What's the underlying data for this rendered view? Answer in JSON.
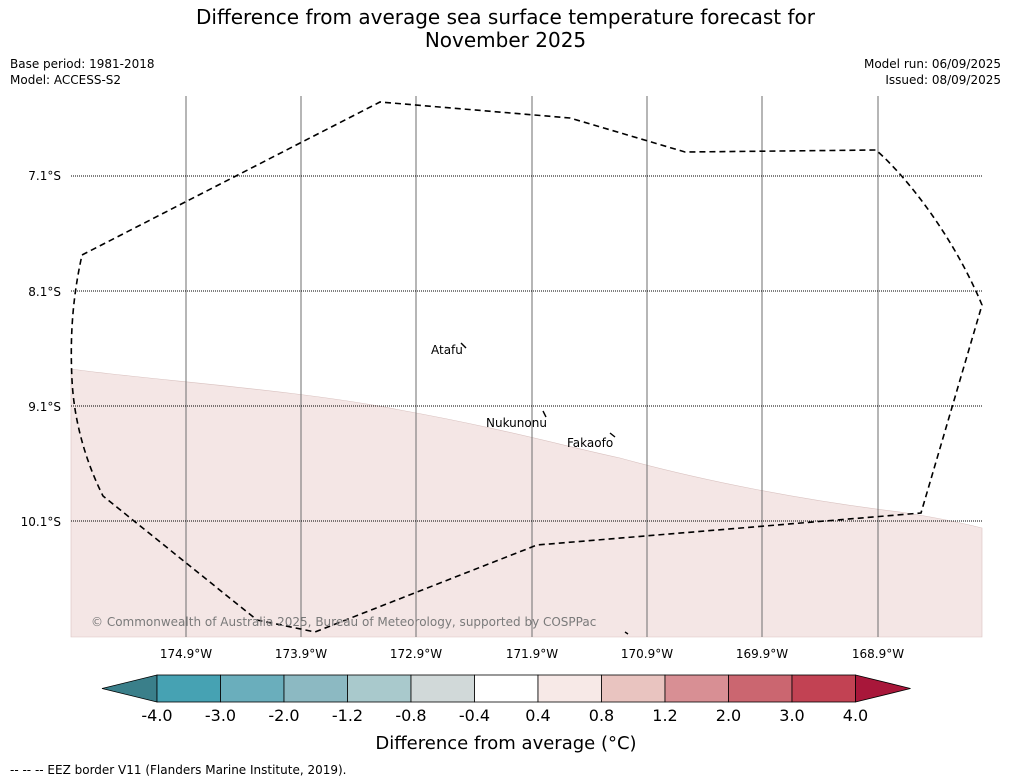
{
  "title_line1": "Difference from average sea surface temperature forecast for",
  "title_line2": "November 2025",
  "meta": {
    "base_period": "Base period: 1981-2018",
    "model": "Model: ACCESS-S2",
    "model_run": "Model run: 06/09/2025",
    "issued": "Issued: 08/09/2025"
  },
  "latitudes": [
    "7.1°S",
    "8.1°S",
    "9.1°S",
    "10.1°S"
  ],
  "longitudes": [
    "174.9°W",
    "173.9°W",
    "172.9°W",
    "171.9°W",
    "170.9°W",
    "169.9°W",
    "168.9°W"
  ],
  "islands": [
    "Atafu",
    "Nukunonu",
    "Fakaofo"
  ],
  "copyright": "© Commonwealth of Australia 2025, Bureau of Meteorology, supported by COSPPac",
  "colorbar": {
    "labels": [
      "-4.0",
      "-3.0",
      "-2.0",
      "-1.2",
      "-0.8",
      "-0.4",
      "0.4",
      "0.8",
      "1.2",
      "2.0",
      "3.0",
      "4.0"
    ],
    "colors": [
      "#3a7f8a",
      "#46a2b3",
      "#6aaebc",
      "#8cb9c2",
      "#a9c9cc",
      "#d1d9d9",
      "#ffffff",
      "#f7e9e7",
      "#e9c4c0",
      "#d88f94",
      "#cb6670",
      "#c24253",
      "#a8173a"
    ],
    "title": "Difference from average (°C)"
  },
  "map_fill_colors": {
    "anomaly_0.4_to_0.8": "#f4e6e5",
    "anomaly_-0.4_to_0.4": "#ffffff"
  },
  "footer": "--  --  -- EEZ border V11 (Flanders Marine Institute, 2019)."
}
